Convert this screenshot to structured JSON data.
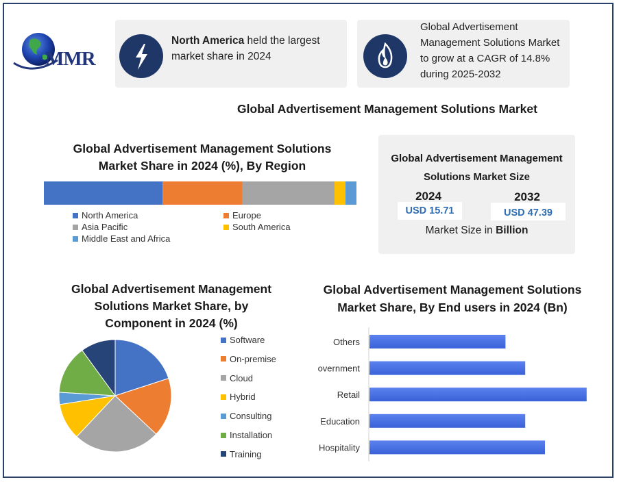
{
  "logo": {
    "text": "MMR"
  },
  "header": {
    "card1": {
      "bold": "North America",
      "rest1": " held the largest",
      "rest2": "market share in 2024"
    },
    "card2": {
      "line1": "Global Advertisement",
      "line2": "Management Solutions Market",
      "line3": "to grow at a CAGR of 14.8%",
      "line4": "during 2025-2032"
    }
  },
  "main_title": "Global Advertisement Management Solutions Market",
  "size_panel": {
    "title1": "Global Advertisement Management",
    "title2": "Solutions Market Size",
    "year1": "2024",
    "value1": "USD 15.71",
    "year2": "2032",
    "value2": "USD 47.39",
    "note_prefix": "Market Size in ",
    "note_bold": "Billion"
  },
  "colors": {
    "blue": "#4472c4",
    "orange": "#ed7d31",
    "gray": "#a5a5a5",
    "yellow": "#ffc000",
    "lightblue": "#5b9bd5",
    "green": "#70ad47",
    "navy": "#264478",
    "bar_blue": "#3a62d8"
  },
  "chart_data": [
    {
      "type": "bar",
      "orientation": "stacked-horizontal",
      "title_line1": "Global Advertisement Management Solutions",
      "title_line2": "Market Share in 2024 (%), By Region",
      "series": [
        {
          "name": "North America",
          "values": [
            38
          ],
          "color": "#4472c4"
        },
        {
          "name": "Europe",
          "values": [
            25.5
          ],
          "color": "#ed7d31"
        },
        {
          "name": "Asia Pacific",
          "values": [
            29.5
          ],
          "color": "#a5a5a5"
        },
        {
          "name": "South America",
          "values": [
            3.5
          ],
          "color": "#ffc000"
        },
        {
          "name": "Middle East and Africa",
          "values": [
            3.5
          ],
          "color": "#5b9bd5"
        }
      ],
      "legend": "bottom"
    },
    {
      "type": "pie",
      "title_line1": "Global Advertisement Management",
      "title_line2": "Solutions Market Share, by",
      "title_line3": "Component in 2024 (%)",
      "slices": [
        {
          "name": "Software",
          "value": 20,
          "color": "#4472c4"
        },
        {
          "name": "On-premise",
          "value": 17,
          "color": "#ed7d31"
        },
        {
          "name": "Cloud",
          "value": 25,
          "color": "#a5a5a5"
        },
        {
          "name": "Hybrid",
          "value": 10.5,
          "color": "#ffc000"
        },
        {
          "name": "Consulting",
          "value": 3.5,
          "color": "#5b9bd5"
        },
        {
          "name": "Installation",
          "value": 14,
          "color": "#70ad47"
        },
        {
          "name": "Training",
          "value": 10,
          "color": "#264478"
        }
      ],
      "legend": "right"
    },
    {
      "type": "bar",
      "orientation": "horizontal",
      "title_line1": "Global Advertisement Management Solutions",
      "title_line2": "Market Share, By End users in 2024 (Bn)",
      "categories": [
        "Others",
        "overnment",
        "Retail",
        "Education",
        "Hospitality"
      ],
      "values": [
        3.1,
        3.55,
        4.95,
        3.55,
        4.0
      ],
      "xlim": [
        0,
        5
      ]
    }
  ]
}
